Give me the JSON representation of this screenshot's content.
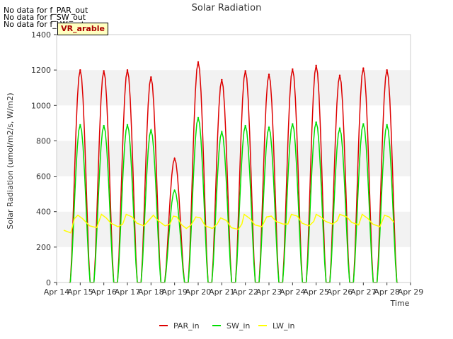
{
  "notes": [
    "No data for f_PAR_out",
    "No data for f_SW_out",
    "No data for f_LW_out"
  ],
  "site_tag": "VR_arable",
  "chart_data": {
    "type": "line",
    "title": "Solar Radiation",
    "xlabel": "Time",
    "ylabel": "Solar Radiation (umol/m2/s, W/m2)",
    "ylim": [
      0,
      1400
    ],
    "yticks": [
      0,
      200,
      400,
      600,
      800,
      1000,
      1200,
      1400
    ],
    "x_tick_labels": [
      "Apr 14",
      "Apr 15",
      "Apr 16",
      "Apr 17",
      "Apr 18",
      "Apr 19",
      "Apr 20",
      "Apr 21",
      "Apr 22",
      "Apr 23",
      "Apr 24",
      "Apr 25",
      "Apr 26",
      "Apr 27",
      "Apr 28",
      "Apr 29"
    ],
    "xlim_days": [
      0,
      15
    ],
    "grid": "horizontal bands",
    "legend_position": "bottom-center",
    "series": [
      {
        "name": "PAR_in",
        "color": "#dd0000",
        "daily_peaks": [
          {
            "day": "Apr 15",
            "peak": 1200
          },
          {
            "day": "Apr 16",
            "peak": 1195
          },
          {
            "day": "Apr 17",
            "peak": 1200
          },
          {
            "day": "Apr 18",
            "peak": 1160
          },
          {
            "day": "Apr 19",
            "peak": 700
          },
          {
            "day": "Apr 20",
            "peak": 1245
          },
          {
            "day": "Apr 21",
            "peak": 1145
          },
          {
            "day": "Apr 22",
            "peak": 1195
          },
          {
            "day": "Apr 23",
            "peak": 1175
          },
          {
            "day": "Apr 24",
            "peak": 1205
          },
          {
            "day": "Apr 25",
            "peak": 1225
          },
          {
            "day": "Apr 26",
            "peak": 1170
          },
          {
            "day": "Apr 27",
            "peak": 1210
          },
          {
            "day": "Apr 28",
            "peak": 1200
          }
        ]
      },
      {
        "name": "SW_in",
        "color": "#00dd00",
        "daily_peaks": [
          {
            "day": "Apr 15",
            "peak": 890
          },
          {
            "day": "Apr 16",
            "peak": 885
          },
          {
            "day": "Apr 17",
            "peak": 890
          },
          {
            "day": "Apr 18",
            "peak": 860
          },
          {
            "day": "Apr 19",
            "peak": 520
          },
          {
            "day": "Apr 20",
            "peak": 930
          },
          {
            "day": "Apr 21",
            "peak": 850
          },
          {
            "day": "Apr 22",
            "peak": 885
          },
          {
            "day": "Apr 23",
            "peak": 875
          },
          {
            "day": "Apr 24",
            "peak": 895
          },
          {
            "day": "Apr 25",
            "peak": 905
          },
          {
            "day": "Apr 26",
            "peak": 870
          },
          {
            "day": "Apr 27",
            "peak": 895
          },
          {
            "day": "Apr 28",
            "peak": 890
          }
        ]
      },
      {
        "name": "LW_in",
        "color": "#ffff00",
        "points": [
          [
            0.3,
            295
          ],
          [
            0.6,
            280
          ],
          [
            0.75,
            360
          ],
          [
            0.9,
            380
          ],
          [
            1.1,
            360
          ],
          [
            1.4,
            320
          ],
          [
            1.7,
            310
          ],
          [
            1.9,
            385
          ],
          [
            2.1,
            365
          ],
          [
            2.3,
            335
          ],
          [
            2.6,
            315
          ],
          [
            2.8,
            330
          ],
          [
            2.95,
            385
          ],
          [
            3.2,
            370
          ],
          [
            3.4,
            335
          ],
          [
            3.7,
            320
          ],
          [
            3.9,
            350
          ],
          [
            4.1,
            380
          ],
          [
            4.3,
            350
          ],
          [
            4.6,
            320
          ],
          [
            4.8,
            330
          ],
          [
            4.95,
            375
          ],
          [
            5.1,
            370
          ],
          [
            5.3,
            325
          ],
          [
            5.5,
            305
          ],
          [
            5.7,
            325
          ],
          [
            5.9,
            370
          ],
          [
            6.1,
            365
          ],
          [
            6.3,
            320
          ],
          [
            6.6,
            305
          ],
          [
            6.8,
            330
          ],
          [
            6.95,
            365
          ],
          [
            7.2,
            350
          ],
          [
            7.4,
            310
          ],
          [
            7.7,
            300
          ],
          [
            7.85,
            330
          ],
          [
            7.95,
            385
          ],
          [
            8.2,
            360
          ],
          [
            8.4,
            325
          ],
          [
            8.7,
            315
          ],
          [
            8.9,
            370
          ],
          [
            9.1,
            375
          ],
          [
            9.3,
            345
          ],
          [
            9.6,
            330
          ],
          [
            9.8,
            330
          ],
          [
            9.95,
            385
          ],
          [
            10.2,
            375
          ],
          [
            10.4,
            335
          ],
          [
            10.7,
            320
          ],
          [
            10.9,
            345
          ],
          [
            11.0,
            385
          ],
          [
            11.2,
            370
          ],
          [
            11.4,
            345
          ],
          [
            11.7,
            330
          ],
          [
            11.9,
            350
          ],
          [
            12.0,
            385
          ],
          [
            12.3,
            370
          ],
          [
            12.5,
            340
          ],
          [
            12.8,
            325
          ],
          [
            12.95,
            385
          ],
          [
            13.2,
            360
          ],
          [
            13.4,
            330
          ],
          [
            13.7,
            315
          ],
          [
            13.9,
            380
          ],
          [
            14.1,
            370
          ],
          [
            14.3,
            340
          ]
        ]
      }
    ]
  }
}
